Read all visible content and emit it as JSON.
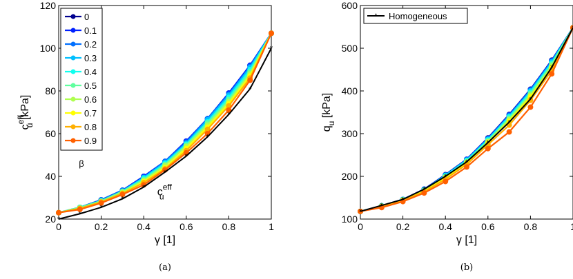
{
  "chart_data": [
    {
      "type": "line",
      "panel_label": "(a)",
      "xlabel": "γ [1]",
      "ylabel_main": "c",
      "ylabel_sup": "eff",
      "ylabel_sub": "u",
      "ylabel_unit": " [kPa]",
      "xlim": [
        0,
        1
      ],
      "ylim": [
        20,
        120
      ],
      "xticks": [
        "0",
        "0.2",
        "0.4",
        "0.6",
        "0.8",
        "1"
      ],
      "yticks": [
        "20",
        "40",
        "60",
        "80",
        "100",
        "120"
      ],
      "legend_title": "β",
      "legend_placement": "top-left",
      "annotation": {
        "main": "c",
        "sup": "eff",
        "sub": "u",
        "x": 0.47,
        "y": 37
      },
      "x": [
        0,
        0.1,
        0.2,
        0.3,
        0.4,
        0.5,
        0.6,
        0.7,
        0.8,
        0.9,
        1
      ],
      "series": [
        {
          "name": "0",
          "color": "#00008f",
          "values": [
            23,
            25.5,
            29,
            33.5,
            40,
            47,
            56.5,
            67,
            79,
            92,
            107
          ]
        },
        {
          "name": "0.1",
          "color": "#0020ff",
          "values": [
            23,
            25.5,
            29,
            33.5,
            40,
            47,
            56.5,
            67,
            79,
            92,
            107
          ]
        },
        {
          "name": "0.2",
          "color": "#0070ff",
          "values": [
            23,
            25.5,
            29,
            33.5,
            39.5,
            47,
            56,
            67,
            78.5,
            91.5,
            107
          ]
        },
        {
          "name": "0.3",
          "color": "#00bfff",
          "values": [
            23,
            25.5,
            28.5,
            33,
            39.5,
            46.5,
            55.5,
            66.5,
            78,
            91,
            107
          ]
        },
        {
          "name": "0.4",
          "color": "#10ffef",
          "values": [
            23,
            25.5,
            28.5,
            33,
            39,
            46,
            55,
            65.5,
            77,
            90,
            107
          ]
        },
        {
          "name": "0.5",
          "color": "#60ff9f",
          "values": [
            23,
            25.5,
            28.5,
            33,
            38.5,
            45.5,
            54.5,
            65,
            76,
            89,
            107
          ]
        },
        {
          "name": "0.6",
          "color": "#afff50",
          "values": [
            23,
            25,
            28,
            32.5,
            38,
            45,
            54,
            64,
            75,
            88,
            107
          ]
        },
        {
          "name": "0.7",
          "color": "#ffff00",
          "values": [
            23,
            25,
            28,
            32,
            37.5,
            44,
            53,
            63,
            74,
            87,
            107
          ]
        },
        {
          "name": "0.8",
          "color": "#ffaf00",
          "values": [
            23,
            25,
            28,
            32,
            37,
            43.5,
            52,
            62,
            73,
            86,
            107
          ]
        },
        {
          "name": "0.9",
          "color": "#ff6000",
          "values": [
            23,
            24.5,
            27.5,
            31.5,
            36,
            43,
            51,
            60,
            71,
            85,
            107
          ]
        },
        {
          "name": "",
          "color": "#000000",
          "values": [
            20,
            22.5,
            25.5,
            29.5,
            35,
            42,
            49.5,
            58.5,
            69,
            81,
            100
          ]
        }
      ]
    },
    {
      "type": "line",
      "panel_label": "(b)",
      "xlabel": "γ [1]",
      "ylabel_main": "q",
      "ylabel_sub": "u",
      "ylabel_unit": " [kPa]",
      "xlim": [
        0,
        1
      ],
      "ylim": [
        100,
        600
      ],
      "xticks": [
        "0",
        "0.2",
        "0.4",
        "0.6",
        "0.8",
        "1"
      ],
      "yticks": [
        "100",
        "200",
        "300",
        "400",
        "500",
        "600"
      ],
      "legend_placement": "top-left",
      "legend": [
        "Homogeneous"
      ],
      "x": [
        0,
        0.1,
        0.2,
        0.3,
        0.4,
        0.5,
        0.6,
        0.7,
        0.8,
        0.9,
        1
      ],
      "series": [
        {
          "name": "",
          "color": "#00008f",
          "values": [
            118,
            131,
            146,
            170,
            204,
            240,
            290,
            345,
            404,
            472,
            548
          ]
        },
        {
          "name": "",
          "color": "#0020ff",
          "values": [
            118,
            131,
            146,
            170,
            203,
            240,
            289,
            344,
            403,
            471,
            548
          ]
        },
        {
          "name": "",
          "color": "#0070ff",
          "values": [
            118,
            131,
            146,
            169,
            203,
            239,
            288,
            343,
            402,
            470,
            548
          ]
        },
        {
          "name": "",
          "color": "#00bfff",
          "values": [
            118,
            131,
            146,
            169,
            202,
            238,
            287,
            341,
            400,
            468,
            548
          ]
        },
        {
          "name": "",
          "color": "#10ffef",
          "values": [
            118,
            131,
            145,
            168,
            201,
            237,
            285,
            339,
            397,
            465,
            548
          ]
        },
        {
          "name": "",
          "color": "#60ff9f",
          "values": [
            118,
            130,
            145,
            167,
            199,
            235,
            283,
            336,
            394,
            462,
            548
          ]
        },
        {
          "name": "",
          "color": "#afff50",
          "values": [
            118,
            130,
            144,
            166,
            198,
            233,
            281,
            333,
            390,
            458,
            548
          ]
        },
        {
          "name": "",
          "color": "#ffff00",
          "values": [
            118,
            130,
            144,
            165,
            196,
            231,
            278,
            329,
            386,
            454,
            548
          ]
        },
        {
          "name": "",
          "color": "#ffaf00",
          "values": [
            118,
            129,
            143,
            164,
            193,
            228,
            274,
            320,
            378,
            448,
            548
          ]
        },
        {
          "name": "",
          "color": "#ff6000",
          "values": [
            118,
            127,
            141,
            161,
            188,
            222,
            265,
            304,
            362,
            440,
            548
          ]
        },
        {
          "name": "Homogeneous",
          "color": "#000000",
          "values": [
            118,
            132,
            146,
            170,
            200,
            234,
            279,
            327,
            381,
            455,
            548
          ]
        }
      ]
    }
  ]
}
